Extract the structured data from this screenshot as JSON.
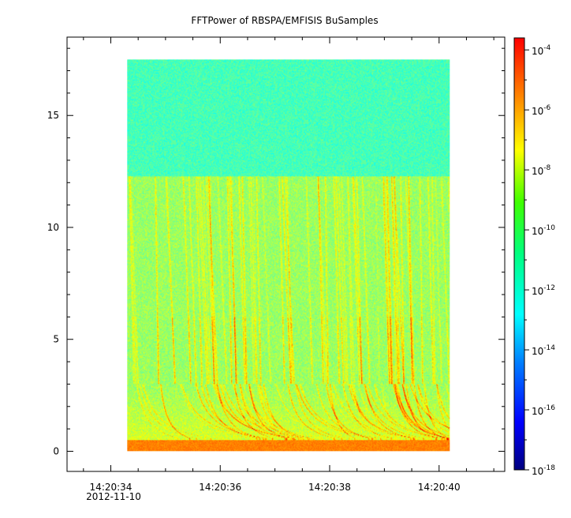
{
  "chart_data": {
    "type": "heatmap",
    "title": "FFTPower of RBSPA/EMFISIS  BuSamples",
    "xlabel": "",
    "ylabel": "",
    "x_tick_labels": [
      "14:20:34",
      "14:20:36",
      "14:20:38",
      "14:20:40"
    ],
    "x_date_label": "2012-11-10",
    "x_range_seconds": [
      33.2,
      41.2
    ],
    "data_x_range_seconds": [
      34.3,
      40.2
    ],
    "y_ticks": [
      0,
      5,
      10,
      15
    ],
    "ylim": [
      -0.9,
      18.5
    ],
    "data_y_range": [
      0,
      17.5
    ],
    "colorbar": {
      "scale": "log",
      "range_exponent": [
        -18,
        -3.6
      ],
      "tick_base": "10",
      "tick_exponents": [
        "-4",
        "-6",
        "-8",
        "-10",
        "-12",
        "-14",
        "-16",
        "-18"
      ]
    },
    "description_bands": [
      {
        "y_range": [
          12.3,
          17.5
        ],
        "level_exponent": -11.5
      },
      {
        "y_range": [
          0.5,
          12.3
        ],
        "level_exponent": -10.2
      },
      {
        "y_range": [
          0,
          0.5
        ],
        "level_exponent": -7.2
      }
    ]
  }
}
